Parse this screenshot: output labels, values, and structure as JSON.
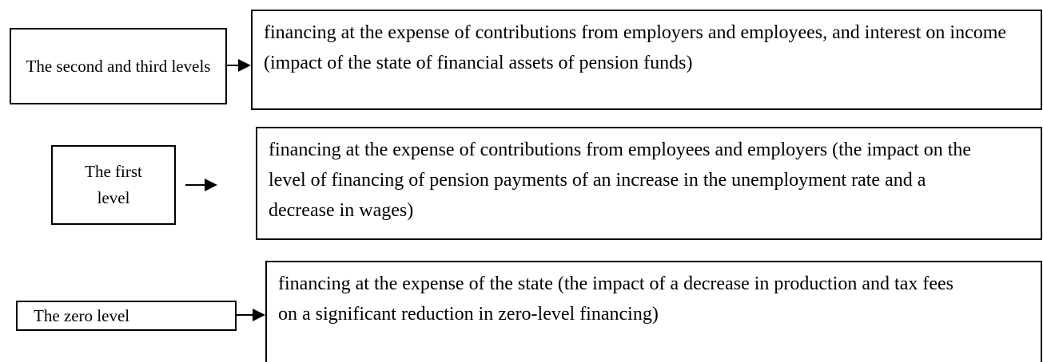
{
  "rows": [
    {
      "level": "The second and third levels",
      "description": "financing at the expense of contributions from employers and employees, and interest on income (impact of the state of financial assets of pension funds)"
    },
    {
      "level": "The first level",
      "description": "financing at the expense of contributions from employees and employers (the impact on the level of financing of pension payments of an increase in the unemployment rate and a decrease in wages)"
    },
    {
      "level": "The zero level",
      "description": "financing at the expense of the state (the impact of a decrease in production and tax fees on a significant reduction in zero-level financing)"
    }
  ]
}
